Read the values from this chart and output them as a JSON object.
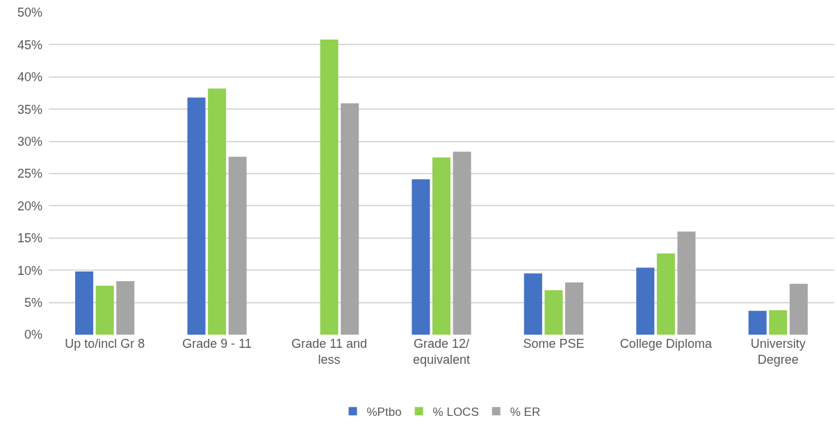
{
  "chart_data": {
    "type": "bar",
    "categories": [
      "Up to/incl Gr 8",
      "Grade 9 - 11",
      "Grade 11 and\nless",
      "Grade 12/\nequivalent",
      "Some PSE",
      "College Diploma",
      "University\nDegree"
    ],
    "series": [
      {
        "name": "%Ptbo",
        "color": "#4472c4",
        "values": [
          9.8,
          36.8,
          null,
          24.1,
          9.5,
          10.4,
          3.7
        ]
      },
      {
        "name": "% LOCS",
        "color": "#92d050",
        "values": [
          7.6,
          38.2,
          45.8,
          27.5,
          6.9,
          12.6,
          3.8
        ]
      },
      {
        "name": "% ER",
        "color": "#a5a5a5",
        "values": [
          8.3,
          27.6,
          35.9,
          28.4,
          8.1,
          16.0,
          7.9
        ]
      }
    ],
    "ylim": [
      0,
      50
    ],
    "yticks": [
      {
        "value": 0,
        "label": "0%"
      },
      {
        "value": 5,
        "label": "5%"
      },
      {
        "value": 10,
        "label": "10%"
      },
      {
        "value": 15,
        "label": "15%"
      },
      {
        "value": 20,
        "label": "20%"
      },
      {
        "value": 25,
        "label": "25%"
      },
      {
        "value": 30,
        "label": "30%"
      },
      {
        "value": 35,
        "label": "35%"
      },
      {
        "value": 40,
        "label": "40%"
      },
      {
        "value": 45,
        "label": "45%"
      },
      {
        "value": 50,
        "label": "50%"
      }
    ],
    "grid": "y",
    "legend": "bottom"
  }
}
